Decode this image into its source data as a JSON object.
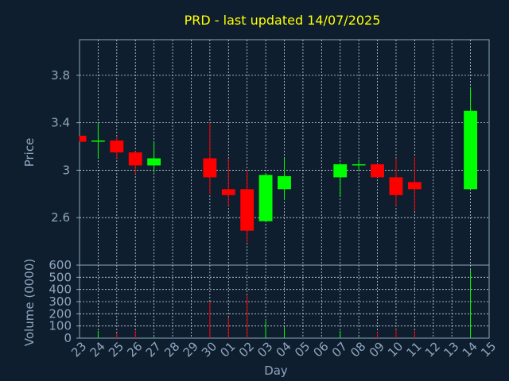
{
  "chart_data": {
    "type": "candlestick",
    "title": "PRD - last updated 14/07/2025",
    "xlabel": "Day",
    "ylabel": "Price",
    "volume_label": "Volume (0000)",
    "price_ylim": [
      2.2,
      4.1
    ],
    "price_ticks": [
      "2.6",
      "3",
      "3.4",
      "3.8"
    ],
    "volume_ylim": [
      0,
      600
    ],
    "volume_ticks": [
      "0",
      "100",
      "200",
      "300",
      "400",
      "500",
      "600"
    ],
    "grid": true,
    "x_ticks": [
      "23",
      "24",
      "25",
      "26",
      "27",
      "28",
      "29",
      "30",
      "01",
      "02",
      "03",
      "04",
      "05",
      "06",
      "07",
      "08",
      "09",
      "10",
      "11",
      "12",
      "13",
      "14",
      "15"
    ],
    "candles": [
      {
        "x": "23",
        "open": 3.29,
        "high": 3.29,
        "low": 3.24,
        "close": 3.24,
        "volume": 0
      },
      {
        "x": "24",
        "open": 3.24,
        "high": 3.4,
        "low": 3.1,
        "close": 3.25,
        "volume": 60
      },
      {
        "x": "25",
        "open": 3.25,
        "high": 3.28,
        "low": 3.1,
        "close": 3.15,
        "volume": 40
      },
      {
        "x": "26",
        "open": 3.15,
        "high": 3.16,
        "low": 2.97,
        "close": 3.04,
        "volume": 60
      },
      {
        "x": "27",
        "open": 3.04,
        "high": 3.24,
        "low": 2.98,
        "close": 3.1,
        "volume": 10
      },
      {
        "x": "30",
        "open": 3.1,
        "high": 3.4,
        "low": 2.8,
        "close": 2.94,
        "volume": 300
      },
      {
        "x": "01",
        "open": 2.84,
        "high": 3.1,
        "low": 2.7,
        "close": 2.79,
        "volume": 170
      },
      {
        "x": "02",
        "open": 2.84,
        "high": 3.0,
        "low": 2.39,
        "close": 2.49,
        "volume": 350
      },
      {
        "x": "03",
        "open": 2.57,
        "high": 2.97,
        "low": 2.57,
        "close": 2.96,
        "volume": 140
      },
      {
        "x": "04",
        "open": 2.84,
        "high": 3.1,
        "low": 2.75,
        "close": 2.95,
        "volume": 90
      },
      {
        "x": "07",
        "open": 2.94,
        "high": 3.06,
        "low": 2.78,
        "close": 3.05,
        "volume": 60
      },
      {
        "x": "08",
        "open": 3.04,
        "high": 3.09,
        "low": 2.99,
        "close": 3.05,
        "volume": 10
      },
      {
        "x": "09",
        "open": 3.05,
        "high": 3.05,
        "low": 2.94,
        "close": 2.94,
        "volume": 50
      },
      {
        "x": "10",
        "open": 2.94,
        "high": 3.1,
        "low": 2.7,
        "close": 2.79,
        "volume": 70
      },
      {
        "x": "11",
        "open": 2.9,
        "high": 3.11,
        "low": 2.66,
        "close": 2.84,
        "volume": 60
      },
      {
        "x": "14",
        "open": 2.84,
        "high": 3.7,
        "low": 2.84,
        "close": 3.5,
        "volume": 560
      }
    ],
    "colors": {
      "background": "#0e1e2e",
      "up": "#00ff00",
      "down": "#ff0000",
      "axis": "#8fa6bf",
      "tick_text": "#8fa6bf",
      "title": "#ffff00",
      "grid": "#c9d3de"
    }
  }
}
